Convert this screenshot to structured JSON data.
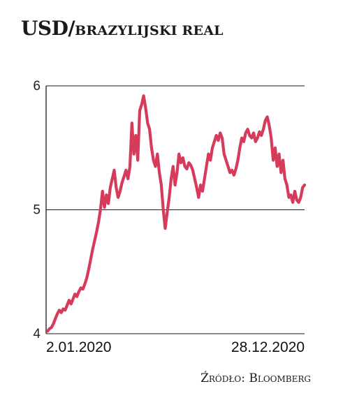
{
  "title": {
    "main": "USD/",
    "sub": "brazylijski real"
  },
  "source": "Źródło: Bloomberg",
  "colors": {
    "line": "#d63b5c",
    "axis": "#1a1a1a"
  },
  "chart_data": {
    "type": "line",
    "title": "USD/brazylijski real",
    "xlabel": "",
    "ylabel": "",
    "ylim": [
      4,
      6
    ],
    "yticks": [
      "4",
      "5",
      "6"
    ],
    "xtick_labels": [
      "2.01.2020",
      "28.12.2020"
    ],
    "grid": "horizontal",
    "series": [
      {
        "values": [
          4.02,
          4.04,
          4.05,
          4.08,
          4.12,
          4.16,
          4.19,
          4.17,
          4.2,
          4.19,
          4.23,
          4.27,
          4.24,
          4.28,
          4.32,
          4.3,
          4.34,
          4.37,
          4.36,
          4.4,
          4.45,
          4.52,
          4.6,
          4.68,
          4.75,
          4.82,
          4.9,
          5.0,
          5.15,
          5.02,
          5.12,
          5.05,
          5.18,
          5.25,
          5.32,
          5.18,
          5.1,
          5.15,
          5.22,
          5.27,
          5.32,
          5.25,
          5.35,
          5.7,
          5.45,
          5.6,
          5.4,
          5.8,
          5.85,
          5.92,
          5.82,
          5.7,
          5.65,
          5.5,
          5.4,
          5.35,
          5.45,
          5.3,
          5.2,
          5.0,
          4.85,
          4.98,
          5.1,
          5.25,
          5.35,
          5.2,
          5.3,
          5.45,
          5.38,
          5.42,
          5.35,
          5.33,
          5.38,
          5.36,
          5.32,
          5.25,
          5.18,
          5.1,
          5.2,
          5.15,
          5.25,
          5.35,
          5.45,
          5.4,
          5.5,
          5.55,
          5.6,
          5.56,
          5.62,
          5.58,
          5.45,
          5.4,
          5.35,
          5.3,
          5.32,
          5.28,
          5.33,
          5.4,
          5.5,
          5.58,
          5.55,
          5.62,
          5.65,
          5.6,
          5.58,
          5.62,
          5.55,
          5.58,
          5.63,
          5.6,
          5.65,
          5.72,
          5.75,
          5.68,
          5.58,
          5.4,
          5.5,
          5.35,
          5.45,
          5.3,
          5.4,
          5.25,
          5.2,
          5.1,
          5.12,
          5.06,
          5.15,
          5.08,
          5.06,
          5.1,
          5.18,
          5.2
        ]
      }
    ]
  }
}
